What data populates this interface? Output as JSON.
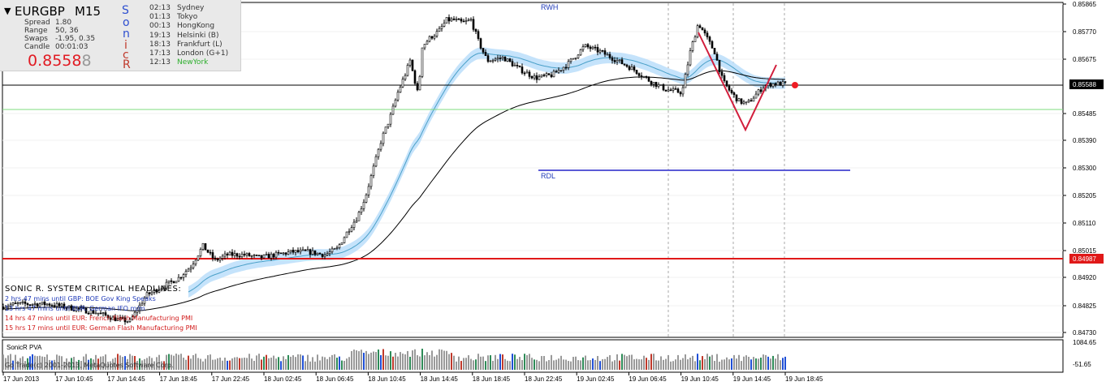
{
  "header": {
    "arrow": "▼",
    "symbol": "EURGBP",
    "timeframe": "M15",
    "stats": [
      {
        "label": "Spread",
        "value": "1.80"
      },
      {
        "label": "Range",
        "value": "50, 36"
      },
      {
        "label": "Swaps",
        "value": "-1.95, 0.35"
      },
      {
        "label": "Candle",
        "value": "00:01:03"
      }
    ],
    "price_main": "0.8558",
    "price_last": "8",
    "sonic_letters": [
      "S",
      "o",
      "n",
      "i",
      "c",
      "R"
    ],
    "sessions": [
      {
        "time": "02:13",
        "name": "Sydney",
        "active": false
      },
      {
        "time": "01:13",
        "name": "Tokyo",
        "active": false
      },
      {
        "time": "00:13",
        "name": "HongKong",
        "active": false
      },
      {
        "time": "19:13",
        "name": "Helsinki  (B)",
        "active": false
      },
      {
        "time": "18:13",
        "name": "Frankfurt  (L)",
        "active": false
      },
      {
        "time": "17:13",
        "name": "London  (G+1)",
        "active": false
      },
      {
        "time": "12:13",
        "name": "NewYork",
        "active": true
      }
    ]
  },
  "annotations": {
    "rwh": "RWH",
    "rdl": "RDL"
  },
  "news": {
    "title": "SONIC R. SYSTEM CRITICAL HEADLINES:",
    "items": [
      {
        "text": "2 hrs 47 mins until GBP: BOE Gov King Speaks",
        "color": "#1f3ab8"
      },
      {
        "text": "13 hrs 47 mins until EUR: German IFO m/m",
        "color": "#1f3ab8"
      },
      {
        "text": "14 hrs 47 mins until EUR: French Flash Manufacturing PMI",
        "color": "#d11a1a"
      },
      {
        "text": "15 hrs 17 mins until EUR: German Flash Manufacturing PMI",
        "color": "#d11a1a"
      }
    ]
  },
  "footer": {
    "indicator": "SonicR PVA",
    "copyright": "Go Trade(c) 2001-2013, MetaQuotes Software Corp."
  },
  "colors": {
    "bull_volume": "#2e8b57",
    "bear_volume": "#c0392b",
    "climax_volume": "#1f4fd6",
    "normal_volume": "#9a9a9a",
    "dragon_band": "#bfe0fb",
    "support_line": "#e01818",
    "rdl_line": "#5b5bd6",
    "price_marker": "#ee1c24"
  },
  "chart_data": {
    "type": "candlestick",
    "symbol": "EURGBP",
    "timeframe": "M15",
    "y_ticks": [
      "0.85865",
      "0.85770",
      "0.85675",
      "0.85588",
      "0.85485",
      "0.85390",
      "0.85300",
      "0.85205",
      "0.85110",
      "0.85015",
      "0.84987",
      "0.84920",
      "0.84825",
      "0.84730"
    ],
    "current_price": 0.85588,
    "support_price": 0.84987,
    "rdl_price": 0.853,
    "x_ticks": [
      "17 Jun 2013",
      "17 Jun 10:45",
      "17 Jun 14:45",
      "17 Jun 18:45",
      "17 Jun 22:45",
      "18 Jun 02:45",
      "18 Jun 06:45",
      "18 Jun 10:45",
      "18 Jun 14:45",
      "18 Jun 18:45",
      "18 Jun 22:45",
      "19 Jun 02:45",
      "19 Jun 06:45",
      "19 Jun 10:45",
      "19 Jun 14:45",
      "19 Jun 18:45"
    ],
    "volume_ticks": [
      "1084.65",
      "-51.65"
    ],
    "price_path": [
      [
        0,
        0.8482
      ],
      [
        20,
        0.8483
      ],
      [
        40,
        0.8483
      ],
      [
        60,
        0.8483
      ],
      [
        80,
        0.8482
      ],
      [
        100,
        0.8481
      ],
      [
        120,
        0.848
      ],
      [
        140,
        0.8478
      ],
      [
        160,
        0.8477
      ],
      [
        180,
        0.8486
      ],
      [
        200,
        0.8489
      ],
      [
        220,
        0.8492
      ],
      [
        235,
        0.8496
      ],
      [
        250,
        0.8503
      ],
      [
        265,
        0.8498
      ],
      [
        280,
        0.85
      ],
      [
        300,
        0.85
      ],
      [
        320,
        0.8499
      ],
      [
        340,
        0.85
      ],
      [
        360,
        0.8501
      ],
      [
        380,
        0.8501
      ],
      [
        400,
        0.85
      ],
      [
        415,
        0.8502
      ],
      [
        430,
        0.8509
      ],
      [
        440,
        0.8513
      ],
      [
        450,
        0.852
      ],
      [
        460,
        0.853
      ],
      [
        470,
        0.854
      ],
      [
        480,
        0.8547
      ],
      [
        490,
        0.8556
      ],
      [
        500,
        0.8563
      ],
      [
        505,
        0.8567
      ],
      [
        515,
        0.8555
      ],
      [
        520,
        0.8572
      ],
      [
        530,
        0.8575
      ],
      [
        540,
        0.8577
      ],
      [
        550,
        0.8581
      ],
      [
        560,
        0.8581
      ],
      [
        570,
        0.858
      ],
      [
        580,
        0.8581
      ],
      [
        590,
        0.8573
      ],
      [
        600,
        0.8567
      ],
      [
        620,
        0.8568
      ],
      [
        640,
        0.8564
      ],
      [
        660,
        0.8561
      ],
      [
        680,
        0.8562
      ],
      [
        700,
        0.8566
      ],
      [
        720,
        0.8572
      ],
      [
        740,
        0.857
      ],
      [
        760,
        0.8567
      ],
      [
        780,
        0.8564
      ],
      [
        800,
        0.856
      ],
      [
        820,
        0.8557
      ],
      [
        840,
        0.8556
      ],
      [
        850,
        0.857
      ],
      [
        860,
        0.858
      ],
      [
        870,
        0.8575
      ],
      [
        880,
        0.857
      ],
      [
        890,
        0.856
      ],
      [
        900,
        0.8556
      ],
      [
        910,
        0.8553
      ],
      [
        920,
        0.8552
      ],
      [
        930,
        0.8555
      ],
      [
        940,
        0.8558
      ],
      [
        950,
        0.8559
      ],
      [
        960,
        0.8559
      ],
      [
        968,
        0.8559
      ]
    ]
  }
}
